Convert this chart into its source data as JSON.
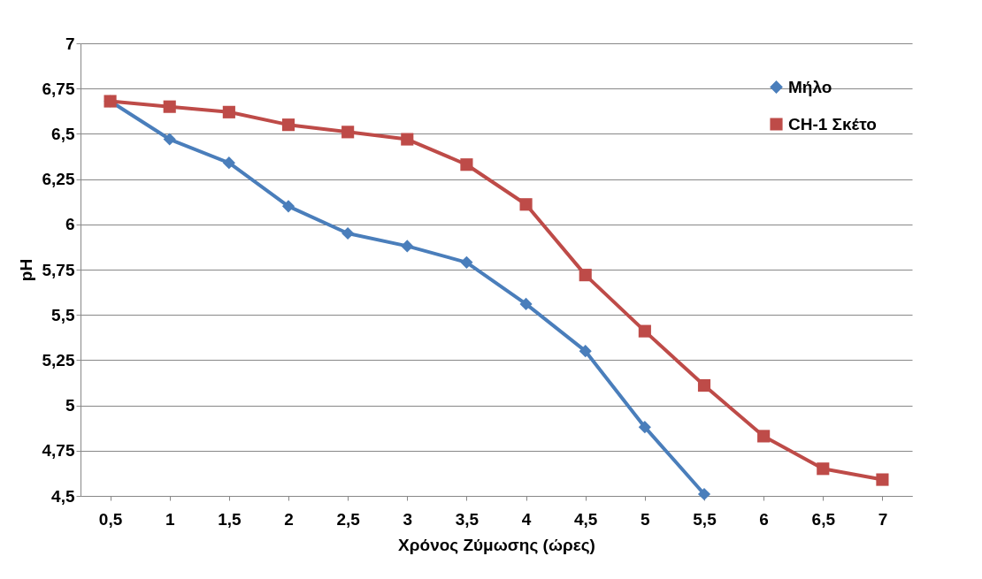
{
  "chart_data": {
    "type": "line",
    "xlabel": "Χρόνος Ζύμωσης (ώρες)",
    "ylabel": "pH",
    "categories": [
      "0,5",
      "1",
      "1,5",
      "2",
      "2,5",
      "3",
      "3,5",
      "4",
      "4,5",
      "5",
      "5,5",
      "6",
      "6,5",
      "7"
    ],
    "series": [
      {
        "name": "Μήλο",
        "color": "#4a7ebb",
        "marker": "diamond",
        "values": [
          6.68,
          6.47,
          6.34,
          6.1,
          5.95,
          5.88,
          5.79,
          5.56,
          5.3,
          4.88,
          4.51,
          null,
          null,
          null
        ]
      },
      {
        "name": "CH-1 Σκέτο",
        "color": "#be4b48",
        "marker": "square",
        "values": [
          6.68,
          6.65,
          6.62,
          6.55,
          6.51,
          6.47,
          6.33,
          6.11,
          5.72,
          5.41,
          5.11,
          4.83,
          4.65,
          4.59
        ]
      }
    ],
    "ylim": [
      4.5,
      7
    ],
    "yticks": [
      {
        "value": 4.5,
        "label": "4,5"
      },
      {
        "value": 4.75,
        "label": "4,75"
      },
      5,
      {
        "value": 5.25,
        "label": "5,25"
      },
      {
        "value": 5.5,
        "label": "5,5"
      },
      {
        "value": 5.75,
        "label": "5,75"
      },
      6,
      {
        "value": 6.25,
        "label": "6,25"
      },
      {
        "value": 6.5,
        "label": "6,5"
      },
      {
        "value": 6.75,
        "label": "6,75"
      },
      7
    ],
    "grid": "y",
    "legend": "top right"
  }
}
